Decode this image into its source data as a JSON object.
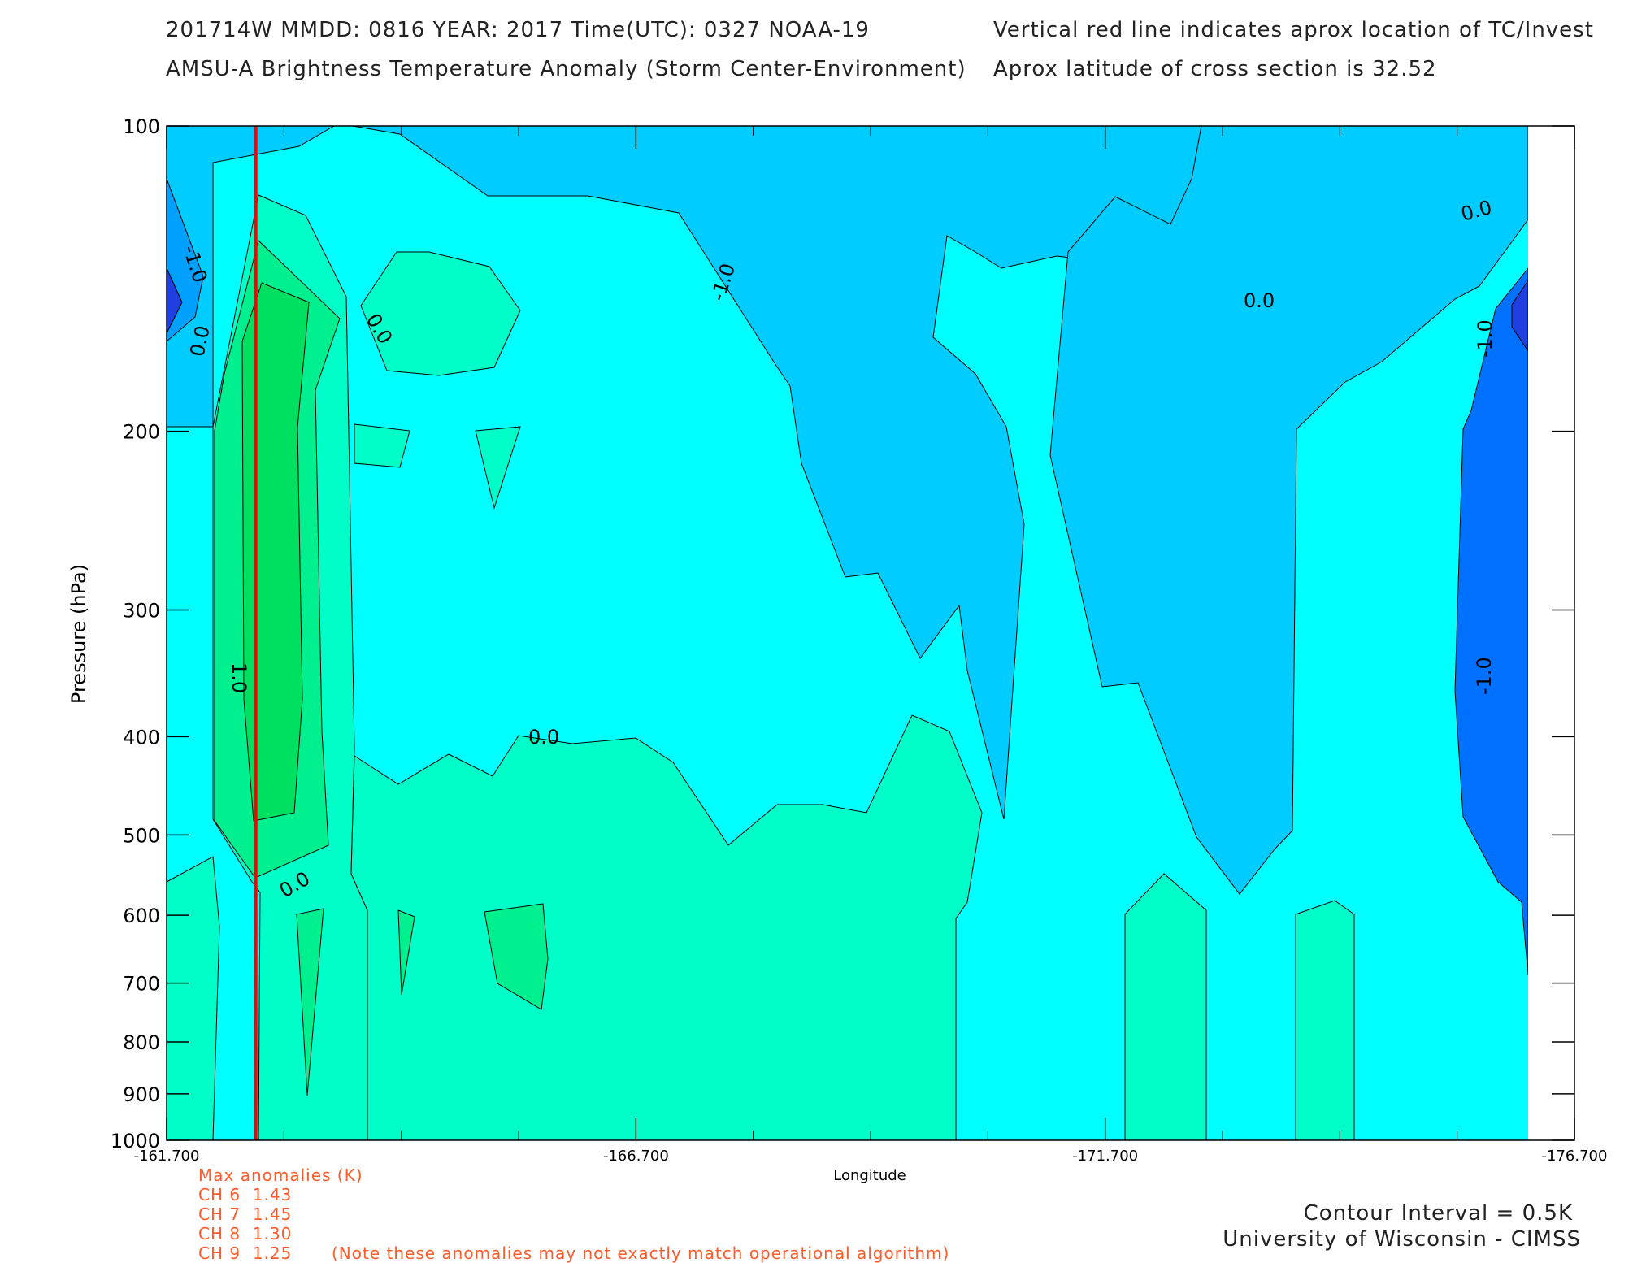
{
  "header": {
    "line1_left": "201714W  MMDD: 0816 YEAR: 2017 Time(UTC): 0327 NOAA-19",
    "line2_left": "AMSU-A Brightness Temperature Anomaly (Storm Center-Environment)",
    "line1_right": "Vertical red line indicates aprox location of TC/Invest",
    "line2_right": "Aprox latitude of cross section is 32.52"
  },
  "chart_data": {
    "type": "contour",
    "xlabel": "Longitude",
    "ylabel": "Pressure (hPa)",
    "xlim": [
      -161.7,
      -176.7
    ],
    "ylim": [
      1000,
      100
    ],
    "x_ticks": [
      "-161.700",
      "-166.700",
      "-171.700",
      "-176.700"
    ],
    "x_tick_values": [
      -161.7,
      -166.7,
      -171.7,
      -176.7
    ],
    "y_ticks": [
      "100",
      "200",
      "300",
      "400",
      "500",
      "600",
      "700",
      "800",
      "900",
      "1000"
    ],
    "y_tick_values": [
      100,
      200,
      300,
      400,
      500,
      600,
      700,
      800,
      900,
      1000
    ],
    "contour_interval_k": 0.5,
    "contour_labels": [
      "-1.0",
      "0.0",
      "-1.0",
      "0.0",
      "0.0",
      "1.0",
      "0.0",
      "0.0",
      "0.0",
      "-1.0",
      "-1.0"
    ],
    "storm_longitude": -162.65,
    "colors": {
      "cyan": "#00ffff",
      "light_blue": "#00ccff",
      "mid_blue": "#00a0ff",
      "blue": "#0070ff",
      "dark_blue": "#1f3fe0",
      "aqua_green": "#00ffc8",
      "green": "#00f090",
      "bright_green": "#00e060",
      "storm_line": "#ff0000"
    }
  },
  "max_anomalies": {
    "title": "Max anomalies (K)",
    "rows": [
      {
        "ch": "CH 6",
        "val": "1.43"
      },
      {
        "ch": "CH 7",
        "val": "1.45"
      },
      {
        "ch": "CH 8",
        "val": "1.30"
      },
      {
        "ch": "CH 9",
        "val": "1.25"
      }
    ],
    "note": "(Note these anomalies may not exactly match operational algorithm)"
  },
  "footer": {
    "contour_interval": "Contour Interval = 0.5K",
    "credit": "University of Wisconsin - CIMSS"
  }
}
